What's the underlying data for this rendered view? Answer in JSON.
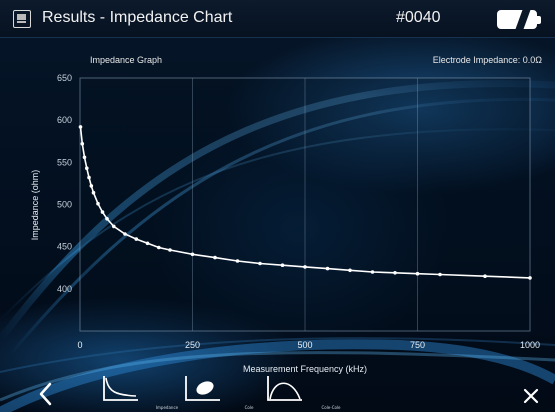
{
  "titlebar": {
    "title": "Results - Impedance Chart",
    "record_no": "#0040",
    "battery_icon": "battery-icon",
    "app_icon": "results-icon"
  },
  "graph": {
    "title": "Impedance Graph",
    "electrode_impedance": "Electrode Impedance: 0.0Ω"
  },
  "chart_data": {
    "type": "line",
    "title": "",
    "xlabel": "Measurement Frequency (kHz)",
    "ylabel": "Impedance (ohm)",
    "xlim": [
      0,
      1000
    ],
    "ylim": [
      350,
      650
    ],
    "x_ticks": [
      "0",
      "250",
      "500",
      "750",
      "1000"
    ],
    "y_ticks": [
      "650",
      "600",
      "550",
      "500",
      "450",
      "400"
    ],
    "grid": true,
    "series": [
      {
        "color": "#ffffff",
        "x": [
          1,
          5,
          10,
          15,
          20,
          25,
          30,
          40,
          50,
          60,
          75,
          100,
          125,
          150,
          175,
          200,
          250,
          300,
          350,
          400,
          450,
          500,
          550,
          600,
          650,
          700,
          750,
          800,
          900,
          1000
        ],
        "y": [
          592,
          572,
          556,
          543,
          532,
          522,
          514,
          501,
          491,
          483,
          474,
          465,
          459,
          454,
          449,
          446,
          441,
          437,
          433,
          430,
          428,
          426,
          424,
          422,
          420,
          419,
          418,
          417,
          415,
          413
        ]
      }
    ]
  },
  "toolbar": {
    "back_icon": "chevron-left-icon",
    "buttons": [
      {
        "label": "Impedance",
        "icon": "decay-curve-icon"
      },
      {
        "label": "Cole",
        "icon": "cole-plot-icon"
      },
      {
        "label": "Cole-Cole",
        "icon": "arc-icon"
      }
    ],
    "close_icon": "close-icon"
  }
}
